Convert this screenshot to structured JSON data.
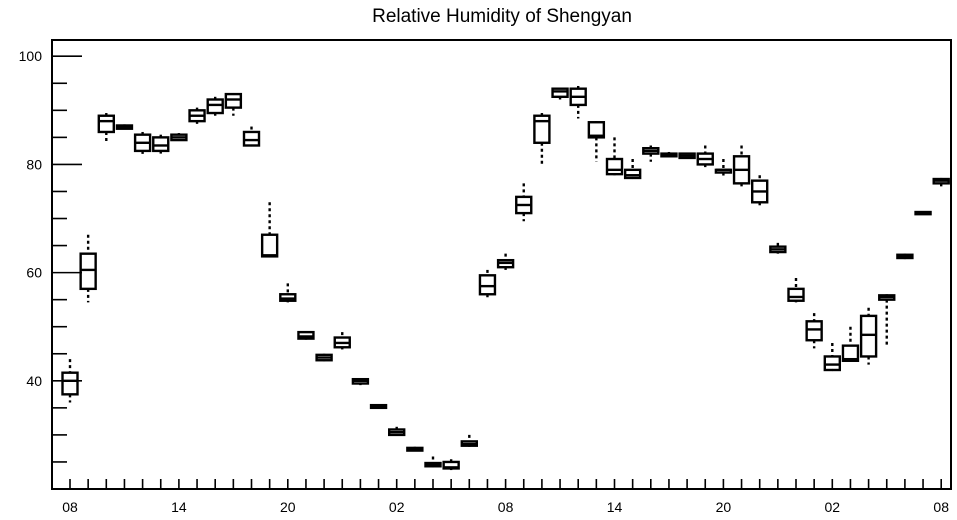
{
  "chart_data": {
    "type": "box",
    "title": "Relative Humidity of Shengyan",
    "xlabel": "",
    "ylabel": "",
    "ylim": [
      20,
      103
    ],
    "y_ticks": [
      40,
      60,
      80,
      100
    ],
    "x_tick_labels": [
      "08",
      "14",
      "20",
      "02",
      "08",
      "14",
      "20",
      "02",
      "08"
    ],
    "grid": false,
    "boxes": [
      {
        "x": 0,
        "min": 36.0,
        "q1": 37.5,
        "median": 40.0,
        "q3": 41.5,
        "max": 44.0
      },
      {
        "x": 1,
        "min": 54.5,
        "q1": 57.0,
        "median": 60.5,
        "q3": 63.5,
        "max": 67.0
      },
      {
        "x": 2,
        "min": 84.0,
        "q1": 86.0,
        "median": 88.0,
        "q3": 89.0,
        "max": 89.5
      },
      {
        "x": 3,
        "min": 86.5,
        "q1": 86.6,
        "median": 87.0,
        "q3": 87.2,
        "max": 87.4
      },
      {
        "x": 4,
        "min": 81.5,
        "q1": 82.5,
        "median": 84.0,
        "q3": 85.5,
        "max": 86.0
      },
      {
        "x": 5,
        "min": 82.0,
        "q1": 82.5,
        "median": 83.5,
        "q3": 85.0,
        "max": 85.5
      },
      {
        "x": 6,
        "min": 84.5,
        "q1": 84.5,
        "median": 85.0,
        "q3": 85.5,
        "max": 85.8
      },
      {
        "x": 7,
        "min": 87.5,
        "q1": 88.0,
        "median": 89.0,
        "q3": 90.0,
        "max": 90.5
      },
      {
        "x": 8,
        "min": 89.0,
        "q1": 89.5,
        "median": 91.0,
        "q3": 92.0,
        "max": 92.5
      },
      {
        "x": 9,
        "min": 89.0,
        "q1": 90.5,
        "median": 92.0,
        "q3": 93.0,
        "max": 93.0
      },
      {
        "x": 10,
        "min": 83.5,
        "q1": 83.5,
        "median": 84.5,
        "q3": 86.0,
        "max": 87.0
      },
      {
        "x": 11,
        "min": 63.0,
        "q1": 63.0,
        "median": 63.2,
        "q3": 67.0,
        "max": 73.0
      },
      {
        "x": 12,
        "min": 54.5,
        "q1": 54.8,
        "median": 55.2,
        "q3": 56.0,
        "max": 58.0
      },
      {
        "x": 13,
        "min": 47.6,
        "q1": 47.8,
        "median": 48.2,
        "q3": 49.0,
        "max": 49.2
      },
      {
        "x": 14,
        "min": 43.6,
        "q1": 43.8,
        "median": 44.3,
        "q3": 44.8,
        "max": 45.0
      },
      {
        "x": 15,
        "min": 45.8,
        "q1": 46.2,
        "median": 47.0,
        "q3": 48.0,
        "max": 49.0
      },
      {
        "x": 16,
        "min": 39.2,
        "q1": 39.5,
        "median": 40.0,
        "q3": 40.3,
        "max": 40.5
      },
      {
        "x": 17,
        "min": 34.8,
        "q1": 35.0,
        "median": 35.2,
        "q3": 35.5,
        "max": 35.7
      },
      {
        "x": 18,
        "min": 29.8,
        "q1": 30.0,
        "median": 30.5,
        "q3": 31.0,
        "max": 31.5
      },
      {
        "x": 19,
        "min": 27.0,
        "q1": 27.1,
        "median": 27.3,
        "q3": 27.6,
        "max": 27.8
      },
      {
        "x": 20,
        "min": 24.0,
        "q1": 24.2,
        "median": 24.5,
        "q3": 24.8,
        "max": 26.0
      },
      {
        "x": 21,
        "min": 23.5,
        "q1": 23.8,
        "median": 24.0,
        "q3": 25.0,
        "max": 25.5
      },
      {
        "x": 22,
        "min": 27.8,
        "q1": 28.0,
        "median": 28.3,
        "q3": 28.8,
        "max": 30.0
      },
      {
        "x": 23,
        "min": 55.0,
        "q1": 56.0,
        "median": 57.5,
        "q3": 59.5,
        "max": 60.5
      },
      {
        "x": 24,
        "min": 60.5,
        "q1": 61.0,
        "median": 61.8,
        "q3": 62.3,
        "max": 63.5
      },
      {
        "x": 25,
        "min": 69.5,
        "q1": 71.0,
        "median": 72.5,
        "q3": 74.0,
        "max": 76.5
      },
      {
        "x": 26,
        "min": 80.0,
        "q1": 84.0,
        "median": 88.0,
        "q3": 89.0,
        "max": 89.5
      },
      {
        "x": 27,
        "min": 92.0,
        "q1": 92.5,
        "median": 93.5,
        "q3": 94.0,
        "max": 94.2
      },
      {
        "x": 28,
        "min": 88.5,
        "q1": 91.0,
        "median": 92.5,
        "q3": 94.0,
        "max": 94.5
      },
      {
        "x": 29,
        "min": 80.5,
        "q1": 85.0,
        "median": 85.3,
        "q3": 87.8,
        "max": 88.0
      },
      {
        "x": 30,
        "min": 78.0,
        "q1": 78.2,
        "median": 79.0,
        "q3": 81.0,
        "max": 85.0
      },
      {
        "x": 31,
        "min": 77.5,
        "q1": 77.5,
        "median": 78.0,
        "q3": 79.0,
        "max": 81.0
      },
      {
        "x": 32,
        "min": 80.5,
        "q1": 82.0,
        "median": 82.5,
        "q3": 83.0,
        "max": 83.5
      },
      {
        "x": 33,
        "min": 81.3,
        "q1": 81.5,
        "median": 81.8,
        "q3": 82.0,
        "max": 82.3
      },
      {
        "x": 34,
        "min": 81.0,
        "q1": 81.2,
        "median": 81.6,
        "q3": 82.0,
        "max": 82.2
      },
      {
        "x": 35,
        "min": 79.5,
        "q1": 80.0,
        "median": 81.0,
        "q3": 82.0,
        "max": 83.5
      },
      {
        "x": 36,
        "min": 77.5,
        "q1": 78.5,
        "median": 79.0,
        "q3": 79.0,
        "max": 81.0
      },
      {
        "x": 37,
        "min": 75.5,
        "q1": 76.5,
        "median": 79.0,
        "q3": 81.5,
        "max": 83.5
      },
      {
        "x": 38,
        "min": 72.0,
        "q1": 73.0,
        "median": 75.0,
        "q3": 77.0,
        "max": 78.0
      },
      {
        "x": 39,
        "min": 63.5,
        "q1": 63.8,
        "median": 64.3,
        "q3": 64.8,
        "max": 65.5
      },
      {
        "x": 40,
        "min": 54.5,
        "q1": 54.8,
        "median": 55.5,
        "q3": 57.0,
        "max": 59.0
      },
      {
        "x": 41,
        "min": 46.0,
        "q1": 47.5,
        "median": 49.5,
        "q3": 51.0,
        "max": 52.5
      },
      {
        "x": 42,
        "min": 42.0,
        "q1": 42.0,
        "median": 43.0,
        "q3": 44.5,
        "max": 47.0
      },
      {
        "x": 43,
        "min": 43.5,
        "q1": 43.7,
        "median": 44.0,
        "q3": 46.5,
        "max": 50.0
      },
      {
        "x": 44,
        "min": 43.0,
        "q1": 44.5,
        "median": 48.5,
        "q3": 52.0,
        "max": 53.5
      },
      {
        "x": 45,
        "min": 46.5,
        "q1": 55.0,
        "median": 55.5,
        "q3": 55.8,
        "max": 56.0
      },
      {
        "x": 46,
        "min": 62.5,
        "q1": 62.7,
        "median": 63.0,
        "q3": 63.3,
        "max": 63.5
      },
      {
        "x": 47,
        "min": 70.7,
        "q1": 70.8,
        "median": 71.0,
        "q3": 71.2,
        "max": 71.3
      },
      {
        "x": 48,
        "min": 75.5,
        "q1": 76.5,
        "median": 77.0,
        "q3": 77.3,
        "max": 77.5
      }
    ]
  }
}
